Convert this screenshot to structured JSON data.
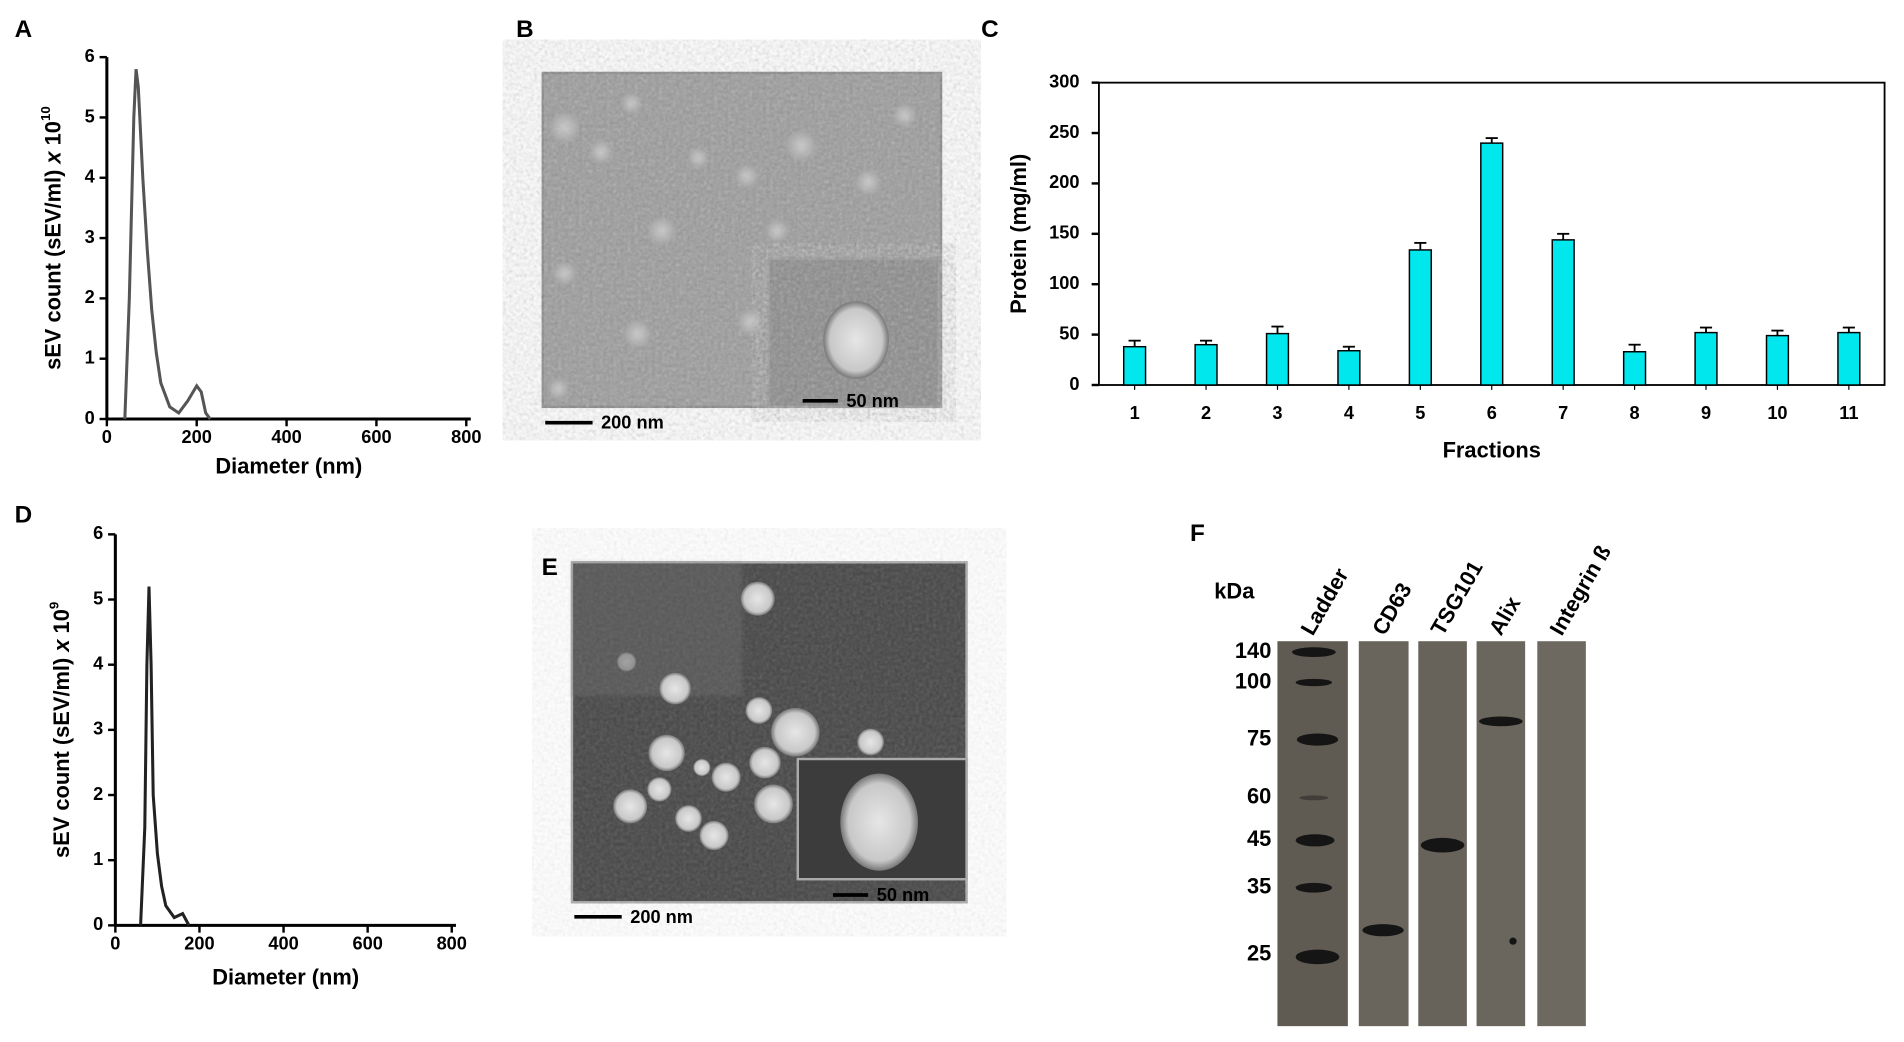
{
  "panel_labels": [
    "A",
    "B",
    "C",
    "D",
    "E",
    "F"
  ],
  "chart_data": [
    {
      "type": "line",
      "xlabel": "Diameter (nm)",
      "ylabel": "sEV count (sEV/ml) ",
      "ylabel_italic": "x",
      "ylabel_base": " 10",
      "ylabel_exponent": "10",
      "x": [
        40,
        50,
        60,
        65,
        70,
        80,
        90,
        100,
        110,
        120,
        140,
        160,
        180,
        200,
        210,
        220,
        230
      ],
      "series": [
        {
          "color": "#555555",
          "values": [
            0,
            2,
            5,
            5.8,
            5.5,
            4,
            2.8,
            1.8,
            1.1,
            0.6,
            0.2,
            0.1,
            0.3,
            0.55,
            0.45,
            0.1,
            0
          ]
        }
      ],
      "xlim": [
        0,
        810
      ],
      "ylim": [
        0,
        6
      ],
      "xticks": [
        0,
        200,
        400,
        600,
        800
      ],
      "yticks": [
        0,
        1,
        2,
        3,
        4,
        5,
        6
      ]
    },
    {
      "type": "bar",
      "xlabel": "Fractions",
      "ylabel": "Protein (mg/ml)",
      "categories": [
        "1",
        "2",
        "3",
        "4",
        "5",
        "6",
        "7",
        "8",
        "9",
        "10",
        "11"
      ],
      "values": [
        38,
        40,
        51,
        34,
        134,
        240,
        144,
        33,
        52,
        49,
        52
      ],
      "errors": [
        6,
        4,
        7,
        4,
        7,
        5,
        6,
        7,
        5,
        5,
        5
      ],
      "color": "#00e8ee",
      "ylim": [
        0,
        300
      ],
      "yticks": [
        0,
        50,
        100,
        150,
        200,
        250,
        300
      ]
    },
    {
      "type": "line",
      "xlabel": "Diameter (nm)",
      "ylabel": "sEV count (sEV/ml) ",
      "ylabel_italic": "x",
      "ylabel_base": " 10",
      "ylabel_exponent": "9",
      "x": [
        60,
        70,
        75,
        80,
        85,
        90,
        100,
        110,
        120,
        140,
        160,
        175
      ],
      "series": [
        {
          "color": "#222222",
          "values": [
            0,
            1.5,
            4,
            5.2,
            4,
            2,
            1.1,
            0.6,
            0.3,
            0.12,
            0.18,
            0
          ]
        }
      ],
      "xlim": [
        0,
        810
      ],
      "ylim": [
        0,
        6
      ],
      "xticks": [
        0,
        200,
        400,
        600,
        800
      ],
      "yticks": [
        0,
        1,
        2,
        3,
        4,
        5,
        6
      ]
    }
  ],
  "micrographs": [
    {
      "scale_bar": "200 nm",
      "inset_scale_bar": "50 nm"
    },
    {
      "scale_bar": "200 nm",
      "inset_scale_bar": "50 nm"
    }
  ],
  "blot": {
    "unit": "kDa",
    "lanes": [
      "Ladder",
      "CD63",
      "TSG101",
      "Alix",
      "Integrin ß"
    ],
    "markers": [
      "140",
      "100",
      "75",
      "60",
      "45",
      "35",
      "25"
    ]
  }
}
